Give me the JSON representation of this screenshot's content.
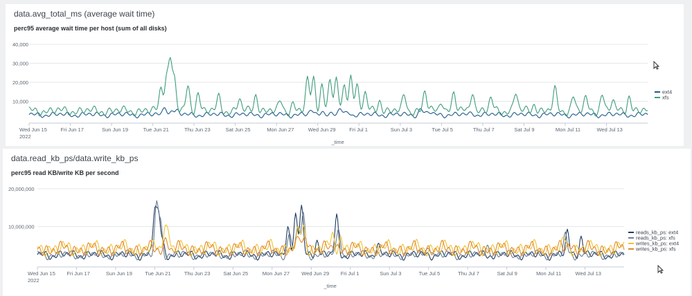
{
  "panels": [
    {
      "panel_title": "data.avg_total_ms (average wait time)",
      "chart_data": {
        "type": "line",
        "title": "perc95 average wait time per host (sum of all disks)",
        "xlabel": "_time",
        "ylabel": "",
        "ylim": [
          0,
          40000
        ],
        "yticks": [
          "40,000",
          "30,000",
          "20,000",
          "10,000"
        ],
        "ytick_values": [
          40000,
          30000,
          20000,
          10000
        ],
        "xticks": [
          "Wed Jun 15",
          "Fri Jun 17",
          "Sun Jun 19",
          "Tue Jun 21",
          "Thu Jun 23",
          "Sat Jun 25",
          "Mon Jun 27",
          "Wed Jun 29",
          "Fri Jul 1",
          "Sun Jul 3",
          "Tue Jul 5",
          "Thu Jul 7",
          "Sat Jul 9",
          "Mon Jul 11",
          "Wed Jul 13"
        ],
        "year_label": "2022",
        "x_day_range": [
          0,
          30
        ],
        "legend_position": "right",
        "series": [
          {
            "name": "ext4",
            "color": "#1e5a8e",
            "base": 3000,
            "spikes": [
              [
                6.6,
                4500
              ],
              [
                6.95,
                2500
              ],
              [
                7.2,
                1500
              ],
              [
                13.7,
                2000
              ],
              [
                14.2,
                2500
              ],
              [
                15.1,
                3000
              ],
              [
                15.5,
                1500
              ],
              [
                19.0,
                3000
              ],
              [
                19.4,
                1500
              ],
              [
                21.5,
                1000
              ]
            ]
          },
          {
            "name": "xfs",
            "color": "#3f9c7a",
            "base": 5000,
            "spikes": [
              [
                6.4,
                12000
              ],
              [
                6.65,
                17000
              ],
              [
                6.85,
                26000
              ],
              [
                7.05,
                15000
              ],
              [
                7.7,
                12000
              ],
              [
                8.2,
                10000
              ],
              [
                9.2,
                7000
              ],
              [
                10.2,
                6000
              ],
              [
                11.0,
                9000
              ],
              [
                12.2,
                5000
              ],
              [
                12.8,
                4000
              ],
              [
                13.5,
                16000
              ],
              [
                13.8,
                17000
              ],
              [
                14.2,
                14000
              ],
              [
                14.6,
                16000
              ],
              [
                14.9,
                16000
              ],
              [
                15.3,
                13000
              ],
              [
                15.6,
                19000
              ],
              [
                15.9,
                13000
              ],
              [
                16.3,
                9000
              ],
              [
                17.0,
                6000
              ],
              [
                18.2,
                8000
              ],
              [
                19.2,
                10000
              ],
              [
                20.0,
                6000
              ],
              [
                20.6,
                9000
              ],
              [
                21.5,
                11000
              ],
              [
                22.4,
                6000
              ],
              [
                23.6,
                10000
              ],
              [
                24.5,
                4000
              ],
              [
                25.5,
                11000
              ],
              [
                26.4,
                8000
              ],
              [
                27.0,
                6000
              ],
              [
                27.8,
                9000
              ],
              [
                28.3,
                5000
              ],
              [
                29.1,
                8000
              ]
            ]
          }
        ]
      }
    },
    {
      "panel_title": "data.read_kb_ps/data.write_kb_ps",
      "chart_data": {
        "type": "line",
        "title": "perc95 read KB/write KB per second",
        "xlabel": "_time",
        "ylabel": "",
        "ylim": [
          0,
          20000000
        ],
        "yticks": [
          "20,000,000",
          "10,000,000"
        ],
        "ytick_values": [
          20000000,
          10000000
        ],
        "xticks": [
          "Wed Jun 15",
          "Fri Jun 17",
          "Sun Jun 19",
          "Tue Jun 21",
          "Thu Jun 23",
          "Sat Jun 25",
          "Mon Jun 27",
          "Wed Jun 29",
          "Fri Jul 1",
          "Sun Jul 3",
          "Tue Jul 5",
          "Thu Jul 7",
          "Sat Jul 9",
          "Mon Jul 11",
          "Wed Jul 13"
        ],
        "year_label": "2022",
        "x_day_range": [
          0,
          30
        ],
        "legend_position": "right",
        "series": [
          {
            "name": "reads_kb_ps: ext4",
            "color": "#1f3a5f",
            "base": 2500000,
            "spikes": [
              [
                6.0,
                12000000
              ],
              [
                6.2,
                10000000
              ],
              [
                6.4,
                3000000
              ],
              [
                12.8,
                8000000
              ],
              [
                13.2,
                10000000
              ],
              [
                13.5,
                13000000
              ],
              [
                14.3,
                4000000
              ],
              [
                15.3,
                10000000
              ],
              [
                17.4,
                3000000
              ],
              [
                27.1,
                6000000
              ],
              [
                27.8,
                5000000
              ]
            ]
          },
          {
            "name": "reads_kb_ps: xfs",
            "color": "#6b7f94",
            "base": 2500000,
            "spikes": [
              [
                6.1,
                13000000
              ],
              [
                6.3,
                8000000
              ],
              [
                12.9,
                6000000
              ],
              [
                13.3,
                8000000
              ],
              [
                13.6,
                11000000
              ],
              [
                15.4,
                8000000
              ],
              [
                20.0,
                3000000
              ],
              [
                23.0,
                3000000
              ],
              [
                27.0,
                5000000
              ]
            ]
          },
          {
            "name": "writes_kb_ps: ext4",
            "color": "#f2c230",
            "base": 4200000,
            "spikes": [
              [
                6.5,
                6000000
              ],
              [
                6.7,
                4000000
              ],
              [
                13.3,
                4000000
              ],
              [
                13.6,
                6000000
              ],
              [
                15.1,
                3000000
              ],
              [
                15.5,
                3000000
              ],
              [
                27.0,
                2000000
              ]
            ]
          },
          {
            "name": "writes_kb_ps: xfs",
            "color": "#e08a2b",
            "base": 4000000,
            "spikes": [
              [
                6.6,
                3000000
              ],
              [
                13.4,
                3000000
              ],
              [
                13.7,
                4000000
              ],
              [
                15.2,
                2000000
              ],
              [
                27.2,
                2000000
              ]
            ]
          }
        ]
      }
    }
  ]
}
